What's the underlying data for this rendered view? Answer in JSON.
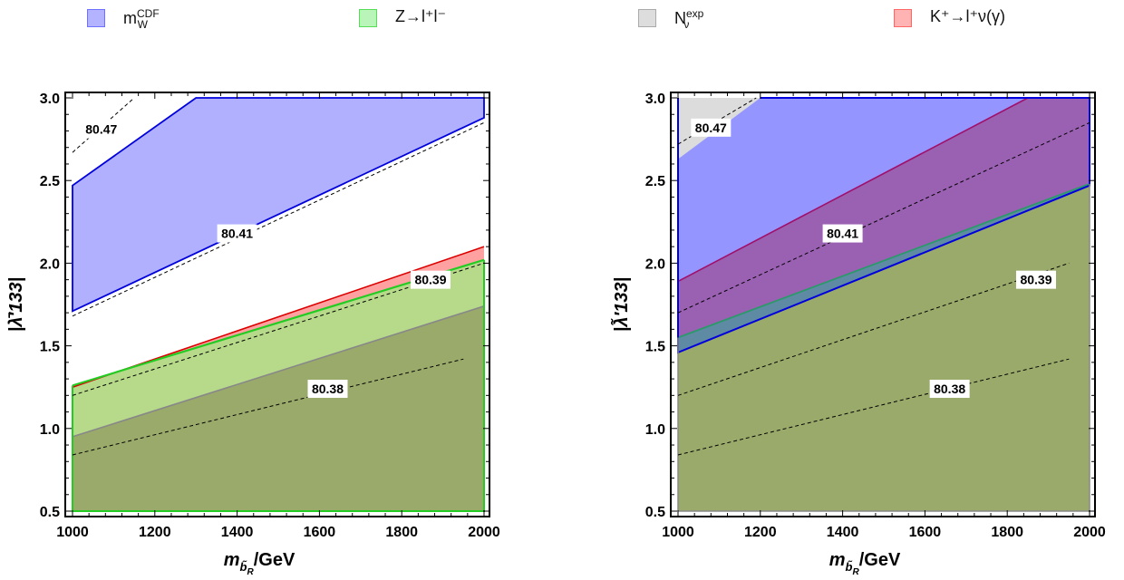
{
  "legend": {
    "items": [
      {
        "label_main": "m",
        "label_sup": "CDF",
        "label_sub": "W",
        "fill": "#b3b3ff",
        "stroke": "#7070ff"
      },
      {
        "label_main": "Z→l⁺l⁻",
        "label_sup": "",
        "label_sub": "",
        "fill": "#b9f5b9",
        "stroke": "#55dd55"
      },
      {
        "label_main": "N",
        "label_sup": "exp",
        "label_sub": "ν",
        "fill": "#dddddd",
        "stroke": "#aaaaaa"
      },
      {
        "label_main": "K⁺→l⁺ν(γ)",
        "label_sup": "",
        "label_sub": "",
        "fill": "#ffb3b3",
        "stroke": "#ff6666"
      }
    ]
  },
  "colors": {
    "blue_fill": "#8f8fff",
    "blue_line": "#0000dd",
    "green_fill": "#a8e87a",
    "green_line": "#22cc22",
    "red_fill": "#ff9090",
    "red_line": "#dd0000",
    "gray_fill": "#8a8a7a",
    "gray_line": "#888888",
    "olive": "#9aaa6a",
    "purple": "#9a5aaa",
    "grid_dash": "#000000"
  },
  "chart_data": [
    {
      "type": "area",
      "xlabel_main": "m",
      "xlabel_sub": "b̃",
      "xlabel_subsub": "R",
      "xlabel_unit": "/GeV",
      "ylabel": "|λ̄′133|",
      "xlim": [
        1000,
        2000
      ],
      "ylim": [
        0.5,
        3.0
      ],
      "xticks": [
        "1000",
        "1200",
        "1400",
        "1600",
        "1800",
        "2000"
      ],
      "yticks": [
        "0.5",
        "1.0",
        "1.5",
        "2.0",
        "2.5",
        "3.0"
      ],
      "regions": [
        {
          "name": "m_W^CDF",
          "kind": "band",
          "color": "blue",
          "polygon": [
            [
              1000,
              1.71
            ],
            [
              2000,
              2.88
            ],
            [
              2000,
              3.0
            ],
            [
              1300,
              3.0
            ],
            [
              1000,
              2.47
            ]
          ]
        },
        {
          "name": "K+ -> l+ nu (gamma)",
          "kind": "below",
          "color": "red",
          "line": [
            [
              1000,
              1.25
            ],
            [
              2000,
              2.1
            ]
          ]
        },
        {
          "name": "Z -> l+ l-",
          "kind": "below",
          "color": "green",
          "line": [
            [
              1000,
              1.26
            ],
            [
              2000,
              2.02
            ]
          ]
        },
        {
          "name": "gray",
          "kind": "below",
          "color": "gray",
          "line": [
            [
              1000,
              0.95
            ],
            [
              2000,
              1.74
            ]
          ]
        }
      ],
      "contours": [
        {
          "label": "80.47",
          "line": [
            [
              1000,
              2.67
            ],
            [
              1150,
              3.0
            ]
          ],
          "label_at": [
            1070,
            2.81
          ]
        },
        {
          "label": "80.41",
          "line": [
            [
              1000,
              1.68
            ],
            [
              2000,
              2.85
            ]
          ],
          "label_at": [
            1400,
            2.18
          ]
        },
        {
          "label": "80.39",
          "line": [
            [
              1000,
              1.2
            ],
            [
              2000,
              2.0
            ]
          ],
          "label_at": [
            1870,
            1.9
          ]
        },
        {
          "label": "80.38",
          "line": [
            [
              1000,
              0.84
            ],
            [
              1950,
              1.42
            ]
          ],
          "label_at": [
            1620,
            1.24
          ]
        }
      ]
    },
    {
      "type": "area",
      "xlabel_main": "m",
      "xlabel_sub": "b̃",
      "xlabel_subsub": "R",
      "xlabel_unit": "/GeV",
      "ylabel": "|λ̃′133|",
      "xlim": [
        1000,
        2000
      ],
      "ylim": [
        0.5,
        3.0
      ],
      "xticks": [
        "1000",
        "1200",
        "1400",
        "1600",
        "1800",
        "2000"
      ],
      "yticks": [
        "0.5",
        "1.0",
        "1.5",
        "2.0",
        "2.5",
        "3.0"
      ],
      "regions": [
        {
          "name": "N_nu^exp",
          "kind": "triangle",
          "color": "gray_light",
          "polygon": [
            [
              1000,
              2.63
            ],
            [
              1000,
              3.0
            ],
            [
              1200,
              3.0
            ]
          ]
        },
        {
          "name": "m_W^CDF",
          "kind": "above",
          "color": "blue",
          "line": [
            [
              1000,
              1.46
            ],
            [
              2000,
              2.47
            ]
          ]
        },
        {
          "name": "K+ -> l+ nu (gamma)",
          "kind": "above",
          "color": "red",
          "line": [
            [
              1000,
              1.89
            ],
            [
              1850,
              3.0
            ]
          ]
        },
        {
          "name": "Z -> l+ l-",
          "kind": "below",
          "color": "green",
          "line": [
            [
              1000,
              1.55
            ],
            [
              2000,
              2.48
            ]
          ]
        }
      ],
      "contours": [
        {
          "label": "80.47",
          "line": [
            [
              1000,
              2.72
            ],
            [
              1190,
              3.0
            ]
          ],
          "label_at": [
            1080,
            2.82
          ]
        },
        {
          "label": "80.41",
          "line": [
            [
              1000,
              1.7
            ],
            [
              2000,
              2.85
            ]
          ],
          "label_at": [
            1400,
            2.18
          ]
        },
        {
          "label": "80.39",
          "line": [
            [
              1000,
              1.2
            ],
            [
              1950,
              2.0
            ]
          ],
          "label_at": [
            1870,
            1.9
          ]
        },
        {
          "label": "80.38",
          "line": [
            [
              1000,
              0.84
            ],
            [
              1950,
              1.42
            ]
          ],
          "label_at": [
            1660,
            1.24
          ]
        }
      ]
    }
  ]
}
